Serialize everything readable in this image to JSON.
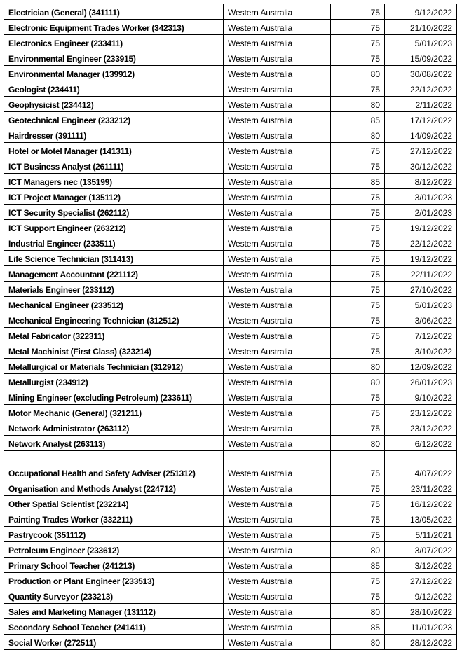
{
  "table": {
    "rows": [
      {
        "occupation": "Electrician (General) (341111)",
        "state": "Western Australia",
        "score": "75",
        "date": "9/12/2022"
      },
      {
        "occupation": "Electronic Equipment Trades Worker (342313)",
        "state": "Western Australia",
        "score": "75",
        "date": "21/10/2022"
      },
      {
        "occupation": "Electronics Engineer (233411)",
        "state": "Western Australia",
        "score": "75",
        "date": "5/01/2023"
      },
      {
        "occupation": "Environmental Engineer (233915)",
        "state": "Western Australia",
        "score": "75",
        "date": "15/09/2022"
      },
      {
        "occupation": "Environmental Manager (139912)",
        "state": "Western Australia",
        "score": "80",
        "date": "30/08/2022"
      },
      {
        "occupation": "Geologist (234411)",
        "state": "Western Australia",
        "score": "75",
        "date": "22/12/2022"
      },
      {
        "occupation": "Geophysicist (234412)",
        "state": "Western Australia",
        "score": "80",
        "date": "2/11/2022"
      },
      {
        "occupation": "Geotechnical Engineer (233212)",
        "state": "Western Australia",
        "score": "85",
        "date": "17/12/2022"
      },
      {
        "occupation": "Hairdresser (391111)",
        "state": "Western Australia",
        "score": "80",
        "date": "14/09/2022"
      },
      {
        "occupation": "Hotel or Motel Manager (141311)",
        "state": "Western Australia",
        "score": "75",
        "date": "27/12/2022"
      },
      {
        "occupation": "ICT Business Analyst (261111)",
        "state": "Western Australia",
        "score": "75",
        "date": "30/12/2022"
      },
      {
        "occupation": "ICT Managers nec (135199)",
        "state": "Western Australia",
        "score": "85",
        "date": "8/12/2022"
      },
      {
        "occupation": "ICT Project Manager (135112)",
        "state": "Western Australia",
        "score": "75",
        "date": "3/01/2023"
      },
      {
        "occupation": "ICT Security Specialist (262112)",
        "state": "Western Australia",
        "score": "75",
        "date": "2/01/2023"
      },
      {
        "occupation": "ICT Support Engineer (263212)",
        "state": "Western Australia",
        "score": "75",
        "date": "19/12/2022"
      },
      {
        "occupation": "Industrial Engineer (233511)",
        "state": "Western Australia",
        "score": "75",
        "date": "22/12/2022"
      },
      {
        "occupation": "Life Science Technician (311413)",
        "state": "Western Australia",
        "score": "75",
        "date": "19/12/2022"
      },
      {
        "occupation": "Management Accountant (221112)",
        "state": "Western Australia",
        "score": "75",
        "date": "22/11/2022"
      },
      {
        "occupation": "Materials Engineer (233112)",
        "state": "Western Australia",
        "score": "75",
        "date": "27/10/2022"
      },
      {
        "occupation": "Mechanical Engineer (233512)",
        "state": "Western Australia",
        "score": "75",
        "date": "5/01/2023"
      },
      {
        "occupation": "Mechanical Engineering Technician (312512)",
        "state": "Western Australia",
        "score": "75",
        "date": "3/06/2022"
      },
      {
        "occupation": "Metal Fabricator (322311)",
        "state": "Western Australia",
        "score": "75",
        "date": "7/12/2022"
      },
      {
        "occupation": "Metal Machinist (First Class) (323214)",
        "state": "Western Australia",
        "score": "75",
        "date": "3/10/2022"
      },
      {
        "occupation": "Metallurgical or Materials Technician (312912)",
        "state": "Western Australia",
        "score": "80",
        "date": "12/09/2022"
      },
      {
        "occupation": "Metallurgist (234912)",
        "state": "Western Australia",
        "score": "80",
        "date": "26/01/2023"
      },
      {
        "occupation": "Mining Engineer (excluding Petroleum) (233611)",
        "state": "Western Australia",
        "score": "75",
        "date": "9/10/2022"
      },
      {
        "occupation": "Motor Mechanic (General) (321211)",
        "state": "Western Australia",
        "score": "75",
        "date": "23/12/2022"
      },
      {
        "occupation": "Network Administrator (263112)",
        "state": "Western Australia",
        "score": "75",
        "date": "23/12/2022"
      },
      {
        "occupation": "Network Analyst (263113)",
        "state": "Western Australia",
        "score": "80",
        "date": "6/12/2022"
      },
      {
        "occupation": "Occupational Health and Safety Adviser (251312)",
        "state": "Western Australia",
        "score": "75",
        "date": "4/07/2022"
      },
      {
        "occupation": "Organisation and Methods Analyst (224712)",
        "state": "Western Australia",
        "score": "75",
        "date": "23/11/2022"
      },
      {
        "occupation": "Other Spatial Scientist (232214)",
        "state": "Western Australia",
        "score": "75",
        "date": "16/12/2022"
      },
      {
        "occupation": "Painting Trades Worker (332211)",
        "state": "Western Australia",
        "score": "75",
        "date": "13/05/2022"
      },
      {
        "occupation": "Pastrycook (351112)",
        "state": "Western Australia",
        "score": "75",
        "date": "5/11/2021"
      },
      {
        "occupation": "Petroleum Engineer (233612)",
        "state": "Western Australia",
        "score": "80",
        "date": "3/07/2022"
      },
      {
        "occupation": "Primary School Teacher (241213)",
        "state": "Western Australia",
        "score": "85",
        "date": "3/12/2022"
      },
      {
        "occupation": "Production or Plant Engineer (233513)",
        "state": "Western Australia",
        "score": "75",
        "date": "27/12/2022"
      },
      {
        "occupation": "Quantity Surveyor (233213)",
        "state": "Western Australia",
        "score": "75",
        "date": "9/12/2022"
      },
      {
        "occupation": "Sales and Marketing Manager (131112)",
        "state": "Western Australia",
        "score": "80",
        "date": "28/10/2022"
      },
      {
        "occupation": "Secondary School Teacher (241411)",
        "state": "Western Australia",
        "score": "85",
        "date": "11/01/2023"
      },
      {
        "occupation": "Social Worker (272511)",
        "state": "Western Australia",
        "score": "80",
        "date": "28/12/2022"
      }
    ]
  }
}
